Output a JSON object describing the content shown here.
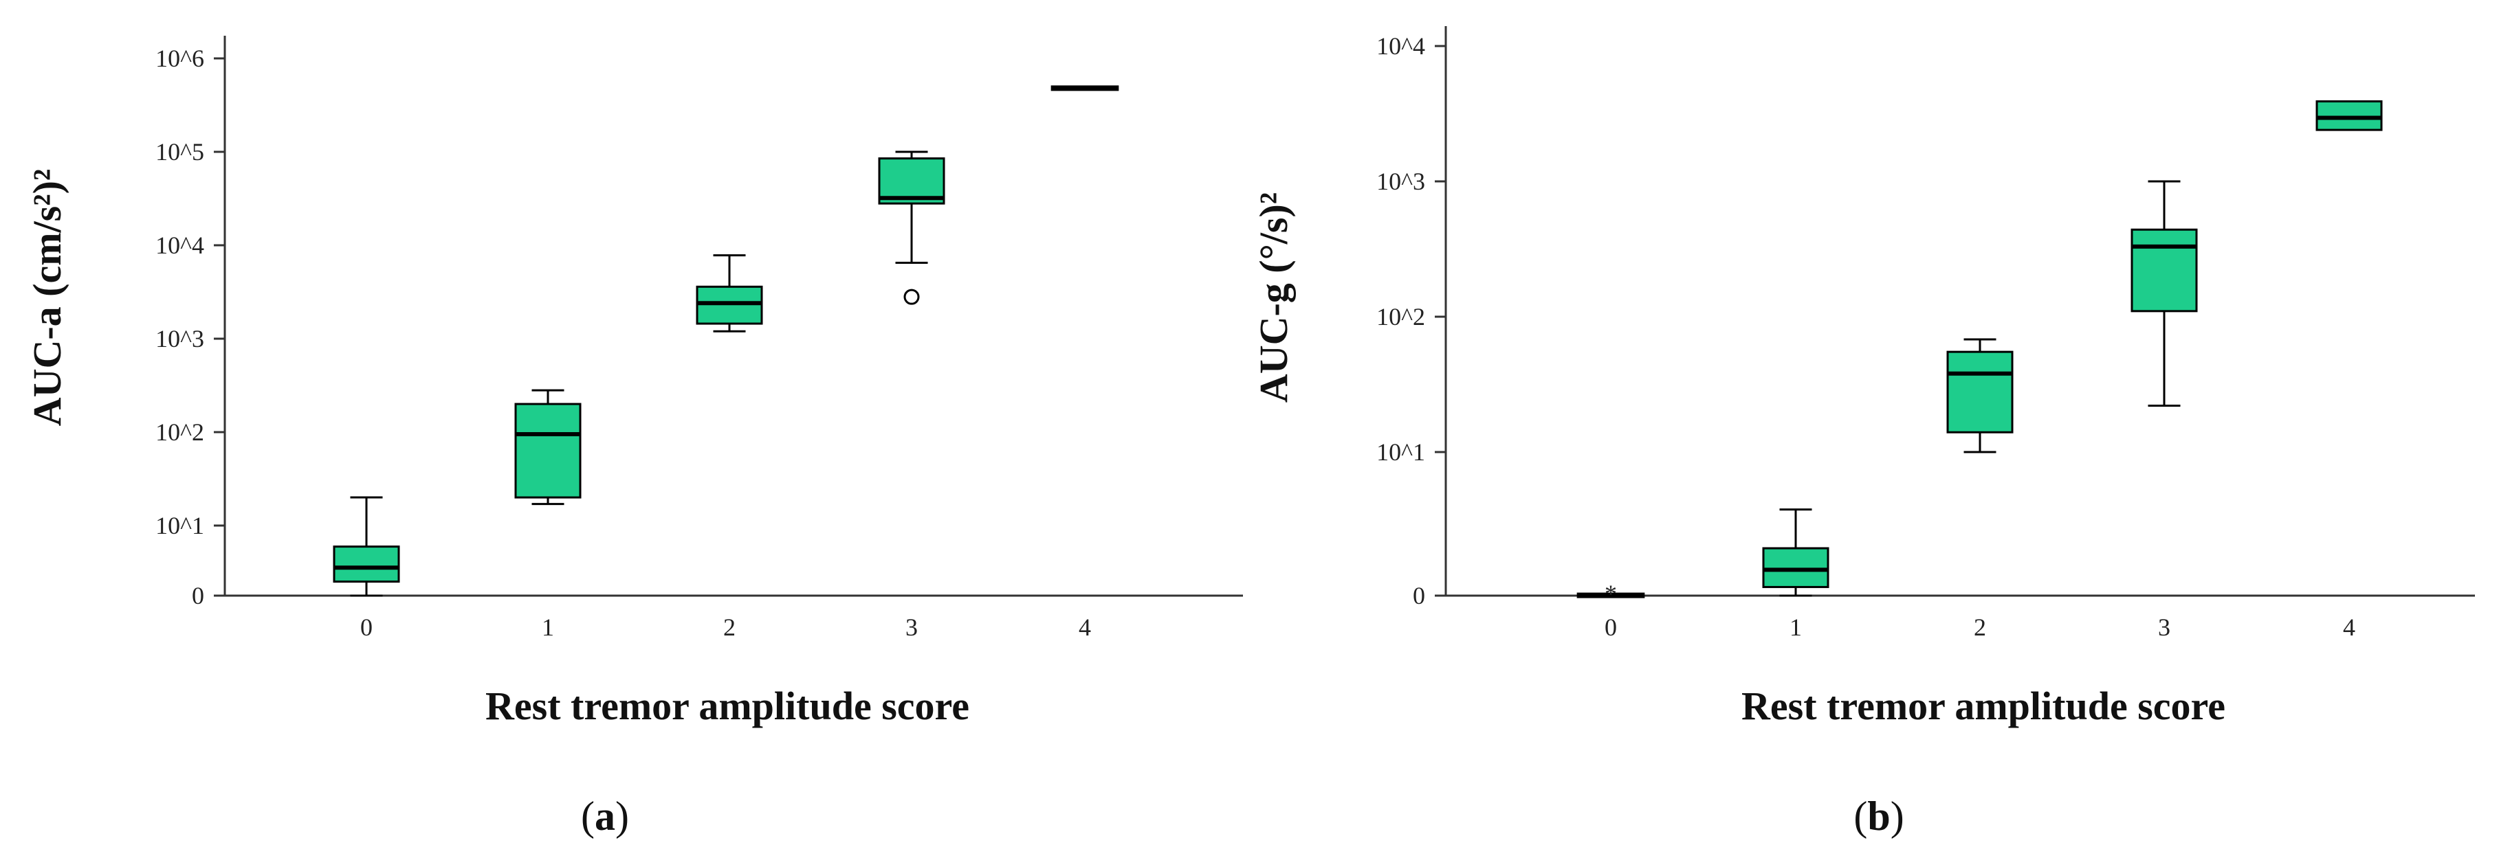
{
  "colors": {
    "box_fill": "#1ecd8c",
    "stroke": "#000000",
    "background": "#ffffff"
  },
  "chart_data": [
    {
      "type": "box",
      "panel_label": "a",
      "xlabel": "Rest tremor amplitude score",
      "ylabel": "AUC-a (cm/s²)²",
      "y_scale": "log",
      "y_tick_labels": [
        "0",
        "10^1",
        "10^2",
        "10^3",
        "10^4",
        "10^5",
        "10^6"
      ],
      "categories": [
        "0",
        "1",
        "2",
        "3",
        "4"
      ],
      "boxes": [
        {
          "category": "0",
          "whisker_low": 0,
          "q1": 2,
          "median": 4,
          "q3": 7,
          "whisker_high": 20,
          "outliers": []
        },
        {
          "category": "1",
          "whisker_low": 17,
          "q1": 20,
          "median": 95,
          "q3": 200,
          "whisker_high": 280,
          "outliers": []
        },
        {
          "category": "2",
          "whisker_low": 1200,
          "q1": 1450,
          "median": 2400,
          "q3": 3600,
          "whisker_high": 7800,
          "outliers": []
        },
        {
          "category": "3",
          "whisker_low": 6500,
          "q1": 28000,
          "median": 32000,
          "q3": 85000,
          "whisker_high": 100000,
          "outliers": [
            2800
          ]
        },
        {
          "category": "4",
          "whisker_low": 480000,
          "q1": 480000,
          "median": 480000,
          "q3": 480000,
          "whisker_high": 480000,
          "outliers": []
        }
      ]
    },
    {
      "type": "box",
      "panel_label": "b",
      "xlabel": "Rest tremor amplitude score",
      "ylabel": "AUC-g (°/s)²",
      "y_scale": "log",
      "y_tick_labels": [
        "0",
        "10^1",
        "10^2",
        "10^3",
        "10^4"
      ],
      "categories": [
        "0",
        "1",
        "2",
        "3",
        "4"
      ],
      "boxes": [
        {
          "category": "0",
          "whisker_low": 0,
          "q1": 0,
          "median": 0.02,
          "q3": 0.05,
          "whisker_high": 0.05,
          "outliers": [
            0.25
          ],
          "outlier_symbol": "*"
        },
        {
          "category": "1",
          "whisker_low": 0,
          "q1": 0.6,
          "median": 1.8,
          "q3": 3.3,
          "whisker_high": 6,
          "outliers": []
        },
        {
          "category": "2",
          "whisker_low": 10,
          "q1": 14,
          "median": 38,
          "q3": 55,
          "whisker_high": 68,
          "outliers": []
        },
        {
          "category": "3",
          "whisker_low": 22,
          "q1": 110,
          "median": 330,
          "q3": 440,
          "whisker_high": 1000,
          "outliers": []
        },
        {
          "category": "4",
          "whisker_low": 2400,
          "q1": 2400,
          "median": 2950,
          "q3": 3900,
          "whisker_high": 3900,
          "outliers": []
        }
      ]
    }
  ]
}
